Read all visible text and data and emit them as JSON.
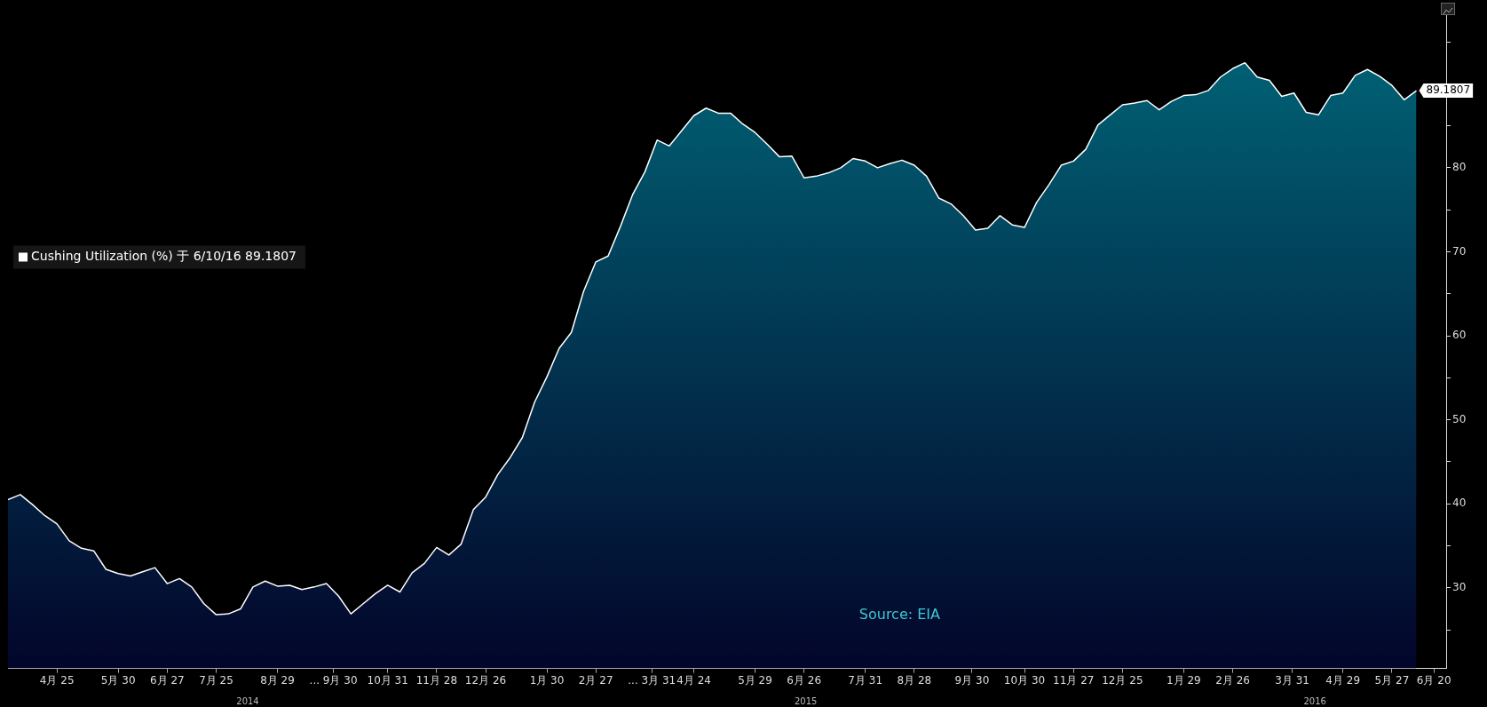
{
  "chart_data": {
    "type": "area",
    "x": [
      "2014-03-28",
      "2014-04-04",
      "2014-04-11",
      "2014-04-18",
      "2014-04-25",
      "2014-05-02",
      "2014-05-09",
      "2014-05-16",
      "2014-05-23",
      "2014-05-30",
      "2014-06-06",
      "2014-06-13",
      "2014-06-20",
      "2014-06-27",
      "2014-07-04",
      "2014-07-11",
      "2014-07-18",
      "2014-07-25",
      "2014-08-01",
      "2014-08-08",
      "2014-08-15",
      "2014-08-22",
      "2014-08-29",
      "2014-09-05",
      "2014-09-12",
      "2014-09-19",
      "2014-09-26",
      "2014-10-03",
      "2014-10-10",
      "2014-10-17",
      "2014-10-24",
      "2014-10-31",
      "2014-11-07",
      "2014-11-14",
      "2014-11-21",
      "2014-11-28",
      "2014-12-05",
      "2014-12-12",
      "2014-12-19",
      "2014-12-26",
      "2015-01-02",
      "2015-01-09",
      "2015-01-16",
      "2015-01-23",
      "2015-01-30",
      "2015-02-06",
      "2015-02-13",
      "2015-02-20",
      "2015-02-27",
      "2015-03-06",
      "2015-03-13",
      "2015-03-20",
      "2015-03-27",
      "2015-04-03",
      "2015-04-10",
      "2015-04-17",
      "2015-04-24",
      "2015-05-01",
      "2015-05-08",
      "2015-05-15",
      "2015-05-22",
      "2015-05-29",
      "2015-06-05",
      "2015-06-12",
      "2015-06-19",
      "2015-06-26",
      "2015-07-03",
      "2015-07-10",
      "2015-07-17",
      "2015-07-24",
      "2015-07-31",
      "2015-08-07",
      "2015-08-14",
      "2015-08-21",
      "2015-08-28",
      "2015-09-04",
      "2015-09-11",
      "2015-09-18",
      "2015-09-25",
      "2015-10-02",
      "2015-10-09",
      "2015-10-16",
      "2015-10-23",
      "2015-10-30",
      "2015-11-06",
      "2015-11-13",
      "2015-11-20",
      "2015-11-27",
      "2015-12-04",
      "2015-12-11",
      "2015-12-18",
      "2015-12-25",
      "2016-01-01",
      "2016-01-08",
      "2016-01-15",
      "2016-01-22",
      "2016-01-29",
      "2016-02-05",
      "2016-02-12",
      "2016-02-19",
      "2016-02-26",
      "2016-03-04",
      "2016-03-11",
      "2016-03-18",
      "2016-03-25",
      "2016-04-01",
      "2016-04-08",
      "2016-04-15",
      "2016-04-22",
      "2016-04-29",
      "2016-05-06",
      "2016-05-13",
      "2016-05-20",
      "2016-05-27",
      "2016-06-03",
      "2016-06-10"
    ],
    "series": [
      {
        "name": "Cushing Utilization (%) 于 6/10/16 89.1807",
        "color": "#00687a",
        "values": [
          40.5,
          41.1,
          39.9,
          38.6,
          37.6,
          35.6,
          34.7,
          34.4,
          32.2,
          31.7,
          31.4,
          31.9,
          32.4,
          30.5,
          31.1,
          30.1,
          28.1,
          26.8,
          26.9,
          27.5,
          30.1,
          30.8,
          30.2,
          30.3,
          29.8,
          30.1,
          30.5,
          29.0,
          26.9,
          28.1,
          29.3,
          30.3,
          29.5,
          31.8,
          32.9,
          34.8,
          33.9,
          35.2,
          39.3,
          40.8,
          43.5,
          45.5,
          47.9,
          52.1,
          55.1,
          58.5,
          60.4,
          65.3,
          68.8,
          69.5,
          73.0,
          76.8,
          79.5,
          83.3,
          82.6,
          84.4,
          86.2,
          87.1,
          86.5,
          86.5,
          85.2,
          84.2,
          82.8,
          81.3,
          81.4,
          78.8,
          79.0,
          79.4,
          80.0,
          81.1,
          80.8,
          80.0,
          80.5,
          80.9,
          80.3,
          79.0,
          76.4,
          75.7,
          74.3,
          72.6,
          72.8,
          74.3,
          73.2,
          72.9,
          75.9,
          78.0,
          80.3,
          80.8,
          82.2,
          85.1,
          86.3,
          87.5,
          87.7,
          88.0,
          86.9,
          87.9,
          88.6,
          88.7,
          89.2,
          90.8,
          91.8,
          92.5,
          90.8,
          90.4,
          88.5,
          88.9,
          86.6,
          86.3,
          88.6,
          88.9,
          91.0,
          91.7,
          90.9,
          89.8,
          88.1,
          89.1807
        ],
        "value_labels": [
          null,
          null,
          null,
          null,
          null,
          null,
          null,
          null,
          null,
          null,
          null,
          null,
          null,
          null,
          null,
          null,
          null,
          null,
          null,
          null,
          null,
          null,
          null,
          null,
          null,
          null,
          null,
          null,
          null,
          null,
          null,
          null,
          null,
          null,
          null,
          null,
          null,
          null,
          null,
          null,
          null,
          null,
          null,
          null,
          null,
          null,
          null,
          null,
          null,
          null,
          null,
          null,
          null,
          null,
          null,
          null,
          null,
          null,
          null,
          null,
          null,
          null,
          null,
          null,
          null,
          null,
          null,
          null,
          null,
          null,
          null,
          null,
          null,
          null,
          null,
          null,
          null,
          null,
          null,
          null,
          null,
          null,
          null,
          null,
          null,
          null,
          null,
          null,
          null,
          null,
          null,
          null,
          null,
          null,
          null,
          null,
          null,
          null,
          null,
          null,
          null,
          null,
          null,
          null,
          null,
          null,
          null,
          null,
          null,
          null,
          null,
          null,
          null,
          null,
          null,
          "89.1807"
        ]
      }
    ],
    "xlim": [
      "2014-03-28",
      "2016-06-27"
    ],
    "xticks": [
      {
        "value": "2014-04-25",
        "label": "4月 25"
      },
      {
        "value": "2014-05-30",
        "label": "5月 30"
      },
      {
        "value": "2014-06-27",
        "label": "6月 27"
      },
      {
        "value": "2014-07-25",
        "label": "7月 25"
      },
      {
        "value": "2014-08-29",
        "label": "8月 29"
      },
      {
        "value": "2014-09-30",
        "label": "... 9月 30"
      },
      {
        "value": "2014-10-31",
        "label": "10月 31"
      },
      {
        "value": "2014-11-28",
        "label": "11月 28"
      },
      {
        "value": "2014-12-26",
        "label": "12月 26"
      },
      {
        "value": "2015-01-30",
        "label": "1月 30"
      },
      {
        "value": "2015-02-27",
        "label": "2月 27"
      },
      {
        "value": "2015-03-31",
        "label": "... 3月 31"
      },
      {
        "value": "2015-04-24",
        "label": "4月 24"
      },
      {
        "value": "2015-05-29",
        "label": "5月 29"
      },
      {
        "value": "2015-06-26",
        "label": "6月 26"
      },
      {
        "value": "2015-07-31",
        "label": "7月 31"
      },
      {
        "value": "2015-08-28",
        "label": "8月 28"
      },
      {
        "value": "2015-09-30",
        "label": "9月 30"
      },
      {
        "value": "2015-10-30",
        "label": "10月 30"
      },
      {
        "value": "2015-11-27",
        "label": "11月 27"
      },
      {
        "value": "2015-12-25",
        "label": "12月 25"
      },
      {
        "value": "2016-01-29",
        "label": "1月 29"
      },
      {
        "value": "2016-02-26",
        "label": "2月 26"
      },
      {
        "value": "2016-03-31",
        "label": "3月 31"
      },
      {
        "value": "2016-04-29",
        "label": "4月 29"
      },
      {
        "value": "2016-05-27",
        "label": "5月 27"
      },
      {
        "value": "2016-06-20",
        "label": "6月 20"
      }
    ],
    "x2lim": [
      "2014-03-28",
      "2016-06-27"
    ],
    "x2ticks": [
      {
        "value": "2014-08-12",
        "label": "2014"
      },
      {
        "value": "2015-06-27",
        "label": "2015"
      },
      {
        "value": "2016-04-13",
        "label": "2016"
      }
    ],
    "ylim": [
      20.4,
      99
    ],
    "yticks": [
      {
        "value": 25,
        "label": null
      },
      30,
      {
        "value": 35,
        "label": null
      },
      40,
      {
        "value": 45,
        "label": null
      },
      50,
      {
        "value": 55,
        "label": null
      },
      60,
      {
        "value": 65,
        "label": null
      },
      70,
      {
        "value": 75,
        "label": null
      },
      80,
      {
        "value": 85,
        "label": null
      },
      {
        "value": 90,
        "label": null
      },
      {
        "value": 95,
        "label": null
      }
    ],
    "grid": false,
    "legend": "left",
    "annotations": [
      "Source: EIA"
    ]
  }
}
